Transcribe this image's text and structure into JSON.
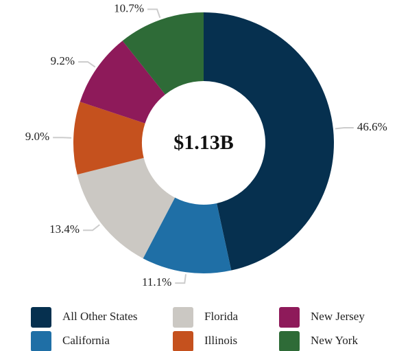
{
  "chart_data": {
    "type": "donut",
    "center_label": "$1.13B",
    "categories": [
      "All Other States",
      "California",
      "Florida",
      "Illinois",
      "New Jersey",
      "New York"
    ],
    "values": [
      46.6,
      11.1,
      13.4,
      9.0,
      9.2,
      10.7
    ],
    "value_labels": [
      "46.6%",
      "11.1%",
      "13.4%",
      "9.0%",
      "9.2%",
      "10.7%"
    ],
    "colors": [
      "#06304f",
      "#1f6fa6",
      "#cbc8c3",
      "#c5511e",
      "#8e1a5a",
      "#2e6b37"
    ]
  }
}
